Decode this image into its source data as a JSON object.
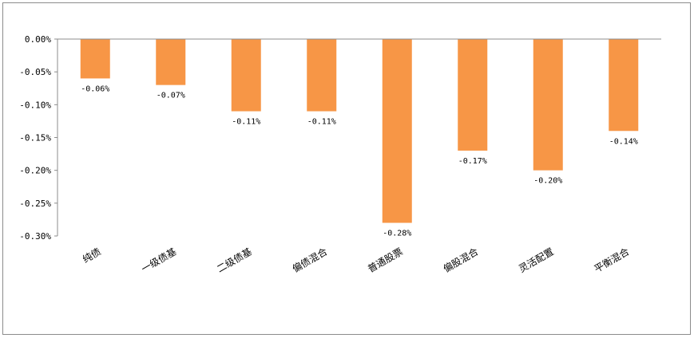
{
  "chart_data": {
    "type": "bar",
    "categories": [
      "纯债",
      "一级债基",
      "二级债基",
      "偏债混合",
      "普通股票",
      "偏股混合",
      "灵活配置",
      "平衡混合"
    ],
    "values": [
      -0.06,
      -0.07,
      -0.11,
      -0.11,
      -0.28,
      -0.17,
      -0.2,
      -0.14
    ],
    "data_labels": [
      "-0.06%",
      "-0.07%",
      "-0.11%",
      "-0.11%",
      "-0.28%",
      "-0.17%",
      "-0.20%",
      "-0.14%"
    ],
    "y_ticks": [
      0,
      -0.05,
      -0.1,
      -0.15,
      -0.2,
      -0.25,
      -0.3
    ],
    "y_tick_labels": [
      "0.00%",
      "-0.05%",
      "-0.10%",
      "-0.15%",
      "-0.20%",
      "-0.25%",
      "-0.30%"
    ],
    "ylim": [
      -0.3,
      0
    ],
    "grid": false,
    "legend": "none",
    "bar_color": "#F79646",
    "title": "",
    "xlabel": "",
    "ylabel": ""
  }
}
